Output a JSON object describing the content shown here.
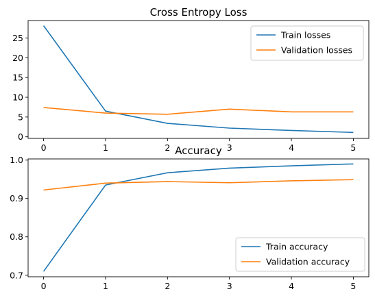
{
  "chart_data": [
    {
      "type": "line",
      "title": "Cross Entropy Loss",
      "xlabel": "",
      "ylabel": "",
      "x": [
        0,
        1,
        2,
        3,
        4,
        5
      ],
      "xlim": [
        -0.25,
        5.25
      ],
      "ylim": [
        -0.4,
        29.4
      ],
      "xticks": [
        0,
        1,
        2,
        3,
        4,
        5
      ],
      "yticks": [
        0,
        5,
        10,
        15,
        20,
        25
      ],
      "grid": false,
      "legend_position": "upper right",
      "series": [
        {
          "name": "Train losses",
          "color": "#1f77b4",
          "values": [
            28.1,
            6.5,
            3.4,
            2.2,
            1.6,
            1.1
          ]
        },
        {
          "name": "Validation losses",
          "color": "#ff7f0e",
          "values": [
            7.4,
            6.0,
            5.7,
            7.0,
            6.3,
            6.3
          ]
        }
      ]
    },
    {
      "type": "line",
      "title": "Accuracy",
      "xlabel": "",
      "ylabel": "",
      "x": [
        0,
        1,
        2,
        3,
        4,
        5
      ],
      "xlim": [
        -0.25,
        5.25
      ],
      "ylim": [
        0.696,
        1.003
      ],
      "xticks": [
        0,
        1,
        2,
        3,
        4,
        5
      ],
      "yticks": [
        0.7,
        0.8,
        0.9,
        1.0
      ],
      "ytick_labels": [
        "0.7",
        "0.8",
        "0.9",
        "1.0"
      ],
      "grid": false,
      "legend_position": "lower right",
      "series": [
        {
          "name": "Train accuracy",
          "color": "#1f77b4",
          "values": [
            0.71,
            0.935,
            0.967,
            0.979,
            0.985,
            0.99
          ]
        },
        {
          "name": "Validation accuracy",
          "color": "#ff7f0e",
          "values": [
            0.922,
            0.94,
            0.944,
            0.941,
            0.946,
            0.949
          ]
        }
      ]
    }
  ]
}
